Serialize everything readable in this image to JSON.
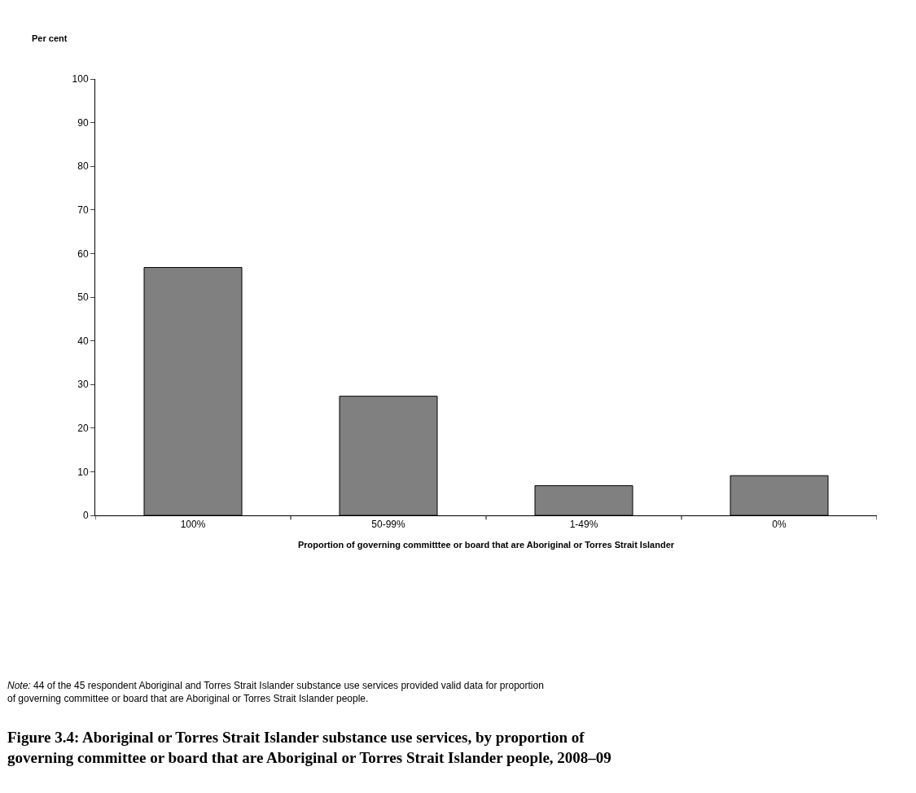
{
  "chart_data": {
    "type": "bar",
    "title": "Figure 3.4: Aboriginal or Torres Strait Islander substance use services, by proportion of governing committee or board that are Aboriginal or Torres Strait Islander people, 2008–09",
    "xlabel": "Proportion of governing committtee or board that are Aboriginal or Torres Strait Islander",
    "ylabel": "Per cent",
    "categories": [
      "100%",
      "50-99%",
      "1-49%",
      "0%"
    ],
    "values": [
      56.8,
      27.3,
      6.8,
      9.1
    ],
    "color": "#808080",
    "ylim": [
      0,
      100
    ],
    "yticks": [
      0,
      10,
      20,
      30,
      40,
      50,
      60,
      70,
      80,
      90,
      100
    ],
    "legend": false,
    "annotations": [
      "Note: 44 of the 45 respondent Aboriginal and Torres Strait Islander substance use services provided valid data for proportion of governing committee or board that are Aboriginal or Torres Strait Islander people."
    ]
  }
}
